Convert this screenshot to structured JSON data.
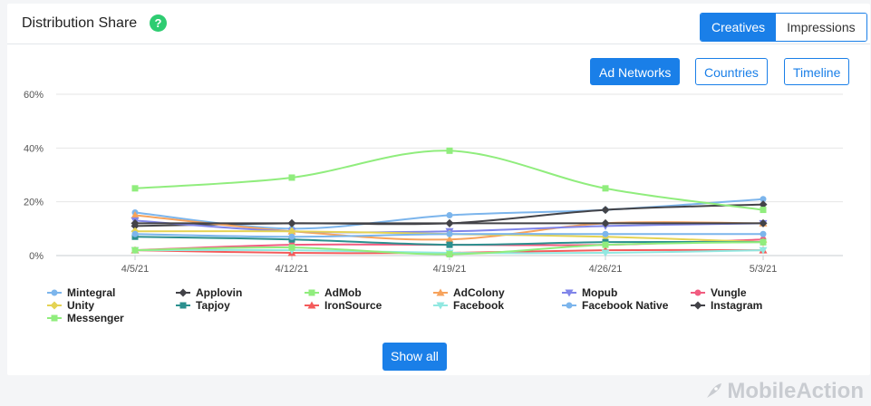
{
  "header": {
    "title": "Distribution Share",
    "help_glyph": "?"
  },
  "toggle": {
    "creatives": "Creatives",
    "impressions": "Impressions",
    "active": "creatives"
  },
  "group_buttons": {
    "ad_networks": "Ad Networks",
    "countries": "Countries",
    "timeline": "Timeline",
    "active": "ad_networks"
  },
  "show_all_label": "Show all",
  "watermark": "MobileAction",
  "chart_data": {
    "type": "line",
    "title": "",
    "xlabel": "",
    "ylabel": "",
    "x": [
      "4/5/21",
      "4/12/21",
      "4/19/21",
      "4/26/21",
      "5/3/21"
    ],
    "ylim": [
      0,
      60
    ],
    "yticks": [
      "0%",
      "20%",
      "40%",
      "60%"
    ],
    "y_tick_values": [
      0,
      20,
      40,
      60
    ],
    "grid": true,
    "legend_position": "bottom",
    "series": [
      {
        "name": "Mintegral",
        "color": "#7cb5ec",
        "marker": "circle",
        "values": [
          16,
          10,
          15,
          17,
          21
        ]
      },
      {
        "name": "Applovin",
        "color": "#434348",
        "marker": "diamond",
        "values": [
          11,
          12,
          12,
          17,
          19
        ]
      },
      {
        "name": "AdMob",
        "color": "#90ed7d",
        "marker": "square",
        "values": [
          25,
          29,
          39,
          25,
          17
        ]
      },
      {
        "name": "AdColony",
        "color": "#f7a35c",
        "marker": "triangle",
        "values": [
          15,
          9,
          6,
          12,
          12
        ]
      },
      {
        "name": "Mopub",
        "color": "#8085e9",
        "marker": "triangle-down",
        "values": [
          13,
          9,
          9,
          11,
          12
        ]
      },
      {
        "name": "Vungle",
        "color": "#f15c80",
        "marker": "circle",
        "values": [
          2,
          4,
          4,
          4,
          6
        ]
      },
      {
        "name": "Unity",
        "color": "#e4d354",
        "marker": "diamond",
        "values": [
          9,
          9,
          8,
          7,
          5
        ]
      },
      {
        "name": "Tapjoy",
        "color": "#2b908f",
        "marker": "square",
        "values": [
          7,
          6,
          4,
          5,
          5
        ]
      },
      {
        "name": "IronSource",
        "color": "#f45b5b",
        "marker": "triangle",
        "values": [
          2,
          1,
          1,
          2,
          2
        ]
      },
      {
        "name": "Facebook",
        "color": "#91e8e1",
        "marker": "triangle-down",
        "values": [
          2,
          2,
          1,
          1,
          2
        ]
      },
      {
        "name": "Facebook Native",
        "color": "#7cb5ec",
        "marker": "circle",
        "values": [
          8,
          7,
          8,
          8,
          8
        ]
      },
      {
        "name": "Instagram",
        "color": "#434348",
        "marker": "diamond",
        "values": [
          12,
          12,
          12,
          12,
          12
        ]
      },
      {
        "name": "Messenger",
        "color": "#90ed7d",
        "marker": "square",
        "values": [
          2,
          3,
          0.5,
          4,
          5
        ]
      }
    ]
  }
}
